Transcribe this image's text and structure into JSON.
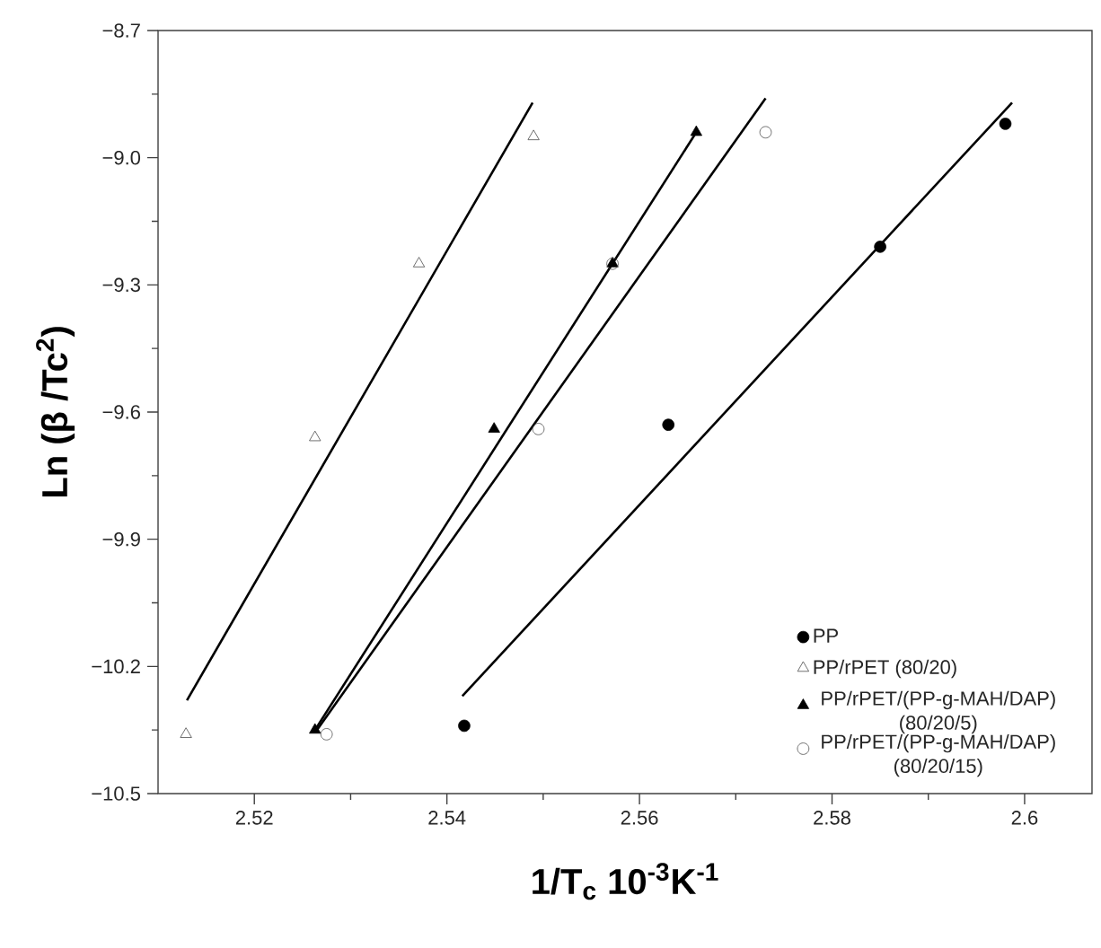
{
  "chart_data": {
    "type": "scatter",
    "xlabel": "1/T$_{c}$ 10$^{-3}$K$^{-1}$",
    "ylabel": "Ln (β /Tc$^{2}$)",
    "xlim": [
      2.51,
      2.607
    ],
    "ylim": [
      -10.5,
      -8.7
    ],
    "xticks": [
      2.52,
      {
        "value": 2.53,
        "label": null
      },
      2.54,
      {
        "value": 2.55,
        "label": null
      },
      2.56,
      {
        "value": 2.57,
        "label": null
      },
      2.58,
      {
        "value": 2.59,
        "label": null
      },
      2.6
    ],
    "yticks": [
      {
        "value": -10.5,
        "label": "−10.5"
      },
      {
        "value": -10.35,
        "label": null
      },
      {
        "value": -10.2,
        "label": "−10.2"
      },
      {
        "value": -10.05,
        "label": null
      },
      {
        "value": -9.9,
        "label": "−9.9"
      },
      {
        "value": -9.75,
        "label": null
      },
      {
        "value": -9.6,
        "label": "−9.6"
      },
      {
        "value": -9.45,
        "label": null
      },
      {
        "value": -9.3,
        "label": "−9.3"
      },
      {
        "value": -9.15,
        "label": null
      },
      {
        "value": -9.0,
        "label": "−9.0"
      },
      {
        "value": -8.85,
        "label": null
      },
      {
        "value": -8.7,
        "label": "−8.7"
      }
    ],
    "grid": false,
    "legend": "bottom right",
    "series": [
      {
        "name": "PP",
        "color": "#000000",
        "marker": "circle",
        "x": [
          2.5418,
          2.563,
          2.585,
          2.598
        ],
        "values": [
          -10.34,
          -9.63,
          -9.21,
          -8.92
        ]
      },
      {
        "name": "PP/rPET (80/20)",
        "color": "#4c4c4c",
        "marker": "triangle",
        "x": [
          2.5129,
          2.5263,
          2.5371,
          2.549
        ],
        "values": [
          -10.36,
          -9.66,
          -9.25,
          -8.95
        ]
      },
      {
        "name": "PP/rPET/(PP-g-MAH/DAP) (80/20/5)",
        "color": "#000000",
        "marker": "triangle",
        "x": [
          2.5263,
          2.5449,
          2.5572,
          2.5659
        ],
        "values": [
          -10.35,
          -9.64,
          -9.25,
          -8.94
        ]
      },
      {
        "name": "PP/rPET/(PP-g-MAH/DAP) (80/20/15)",
        "color": "#4c4c4c",
        "marker": "circle",
        "x": [
          2.5275,
          2.5495,
          2.5572,
          2.5731
        ],
        "values": [
          -10.36,
          -9.64,
          -9.25,
          -8.94
        ]
      },
      {
        "type": "line",
        "color": "#000000",
        "marker": "none",
        "x": [
          2.5416,
          2.5987
        ],
        "values": [
          -10.27,
          -8.87
        ]
      },
      {
        "type": "line",
        "color": "#000000",
        "marker": "none",
        "x": [
          2.513,
          2.5489
        ],
        "values": [
          -10.28,
          -8.87
        ]
      },
      {
        "type": "line",
        "color": "#000000",
        "marker": "none",
        "x": [
          2.5263,
          2.5659
        ],
        "values": [
          -10.35,
          -8.94
        ]
      },
      {
        "type": "line",
        "color": "#000000",
        "marker": "none",
        "x": [
          2.5265,
          2.5731
        ],
        "values": [
          -10.35,
          -8.86
        ]
      }
    ]
  }
}
